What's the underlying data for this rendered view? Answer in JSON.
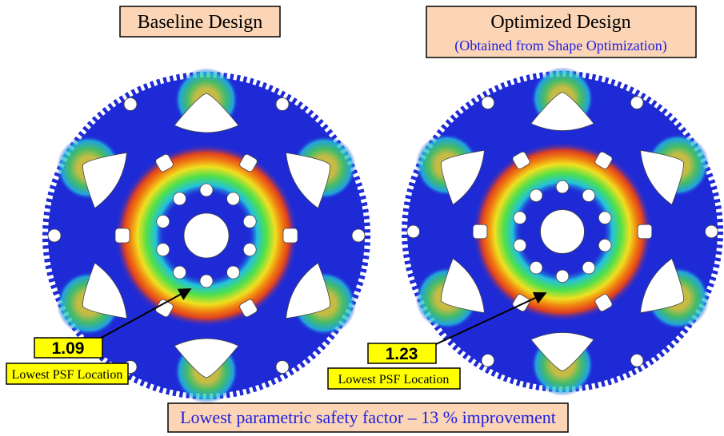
{
  "panels": [
    {
      "title": "Baseline Design",
      "psf_value": "1.09",
      "psf_caption": "Lowest PSF Location"
    },
    {
      "title": "Optimized Design",
      "subtitle": "(Obtained from Shape Optimization)",
      "psf_value": "1.23",
      "psf_caption": "Lowest PSF Location"
    }
  ],
  "footer": "Lowest parametric safety factor – 13 % improvement"
}
